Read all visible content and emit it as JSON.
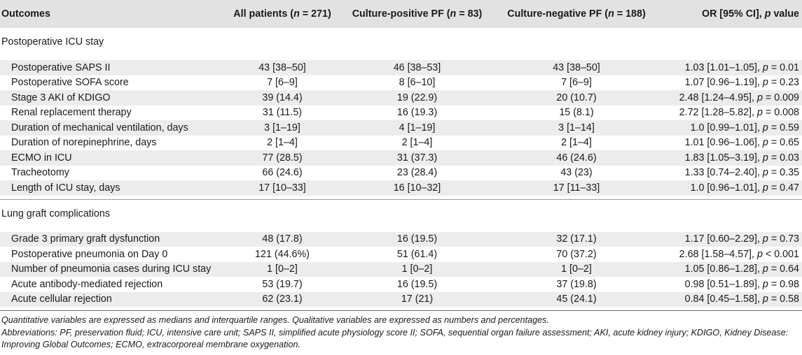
{
  "header": {
    "outcomes": "Outcomes",
    "all_pre": "All patients (",
    "all_n": "n",
    "all_post": " = 271)",
    "pos_pre": "Culture-positive PF (",
    "pos_n": "n",
    "pos_post": " = 83)",
    "neg_pre": "Culture-negative PF (",
    "neg_n": "n",
    "neg_post": " = 188)",
    "or_pre": "OR [95% CI], ",
    "or_p": "p",
    "or_post": " value"
  },
  "sections": [
    {
      "title": "Postoperative ICU stay",
      "rows": [
        {
          "label": "Postoperative SAPS II",
          "all": "43 [38–50]",
          "pos": "46 [38–53]",
          "neg": "43 [38–50]",
          "or": "1.03 [1.01–1.05], ",
          "p": "p",
          "pval": " = 0.01"
        },
        {
          "label": "Postoperative SOFA score",
          "all": "7 [6–9]",
          "pos": "8 [6–10]",
          "neg": "7 [6–9]",
          "or": "1.07 [0.96–1.19], ",
          "p": "p",
          "pval": " = 0.23"
        },
        {
          "label": "Stage 3 AKI of KDIGO",
          "all": "39 (14.4)",
          "pos": "19 (22.9)",
          "neg": "20 (10.7)",
          "or": "2.48 [1.24–4.95], ",
          "p": "p",
          "pval": " = 0.009"
        },
        {
          "label": "Renal replacement therapy",
          "all": "31 (11.5)",
          "pos": "16 (19.3)",
          "neg": "15 (8.1)",
          "or": "2.72 [1.28–5.82], ",
          "p": "p",
          "pval": " = 0.008"
        },
        {
          "label": "Duration of mechanical ventilation, days",
          "all": "3 [1–19]",
          "pos": "4 [1–19]",
          "neg": "3 [1–14]",
          "or": "1.0 [0.99–1.01], ",
          "p": "p",
          "pval": " = 0.59"
        },
        {
          "label": "Duration of norepinephrine, days",
          "all": "2 [1–4]",
          "pos": "2 [1–4]",
          "neg": "2 [1–4]",
          "or": "1.01 [0.96–1.06], ",
          "p": "p",
          "pval": " = 0.65"
        },
        {
          "label": "ECMO in ICU",
          "all": "77 (28.5)",
          "pos": "31 (37.3)",
          "neg": "46 (24.6)",
          "or": "1.83 [1.05–3.19], ",
          "p": "p",
          "pval": " = 0.03"
        },
        {
          "label": "Tracheotomy",
          "all": "66 (24.6)",
          "pos": "23 (28.4)",
          "neg": "43 (23)",
          "or": "1.33 [0.74–2.40], ",
          "p": "p",
          "pval": " = 0.35"
        },
        {
          "label": "Length of ICU stay, days",
          "all": "17 [10–33]",
          "pos": "16 [10–32]",
          "neg": "17 [11–33]",
          "or": "1.0 [0.96–1.01], ",
          "p": "p",
          "pval": " = 0.47"
        }
      ]
    },
    {
      "title": "Lung graft complications",
      "rows": [
        {
          "label": "Grade 3 primary graft dysfunction",
          "all": "48 (17.8)",
          "pos": "16 (19.5)",
          "neg": "32 (17.1)",
          "or": "1.17 [0.60–2.29], ",
          "p": "p",
          "pval": " = 0.73"
        },
        {
          "label": "Postoperative pneumonia on Day 0",
          "all": "121 (44.6%)",
          "pos": "51 (61.4)",
          "neg": "70 (37.2)",
          "or": "2.68 [1.58–4.57], ",
          "p": "p",
          "pval": " < 0.001"
        },
        {
          "label": "Number of pneumonia cases during ICU stay",
          "all": "1 [0–2]",
          "pos": "1 [0–2]",
          "neg": "1 [0–2]",
          "or": "1.05 [0.86–1.28], ",
          "p": "p",
          "pval": " = 0.64"
        },
        {
          "label": "Acute antibody-mediated rejection",
          "all": "53 (19.7)",
          "pos": "16 (19.5)",
          "neg": "37 (19.8)",
          "or": "0.98 [0.51–1.89], ",
          "p": "p",
          "pval": " = 0.98"
        },
        {
          "label": "Acute cellular rejection",
          "all": "62 (23.1)",
          "pos": "17 (21)",
          "neg": "45 (24.1)",
          "or": "0.84 [0.45–1.58], ",
          "p": "p",
          "pval": " = 0.58"
        }
      ]
    }
  ],
  "footnotes": {
    "line1": "Quantitative variables are expressed as medians and interquartile ranges. Qualitative variables are expressed as numbers and percentages.",
    "line2": "Abbreviations: PF, preservation fluid; ICU, intensive care unit; SAPS II, simplified acute physiology score II; SOFA, sequential organ failure assessment; AKI, acute kidney injury; KDIGO, Kidney Disease: Improving Global Outcomes; ECMO, extracorporeal membrane oxygenation."
  }
}
